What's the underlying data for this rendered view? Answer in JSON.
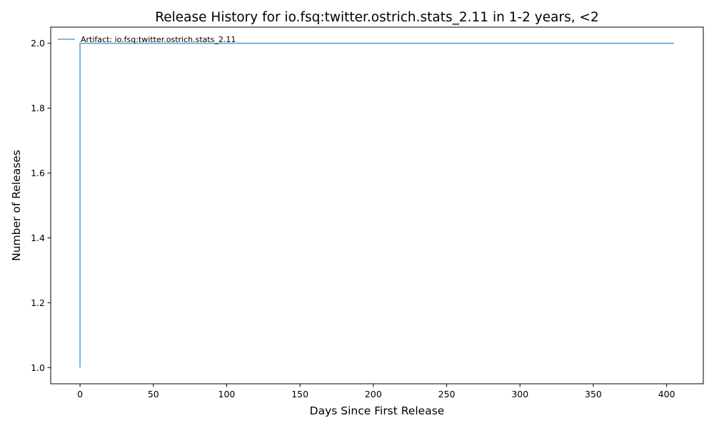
{
  "chart_data": {
    "type": "line",
    "title": "Release History for io.fsq:twitter.ostrich.stats_2.11 in 1-2 years, <2",
    "xlabel": "Days Since First Release",
    "ylabel": "Number of Releases",
    "xlim": [
      -20,
      425
    ],
    "ylim": [
      0.95,
      2.05
    ],
    "xticks": [
      0,
      50,
      100,
      150,
      200,
      250,
      300,
      350,
      400
    ],
    "yticks": [
      1.0,
      1.2,
      1.4,
      1.6,
      1.8,
      2.0
    ],
    "grid": false,
    "legend_position": "top-left",
    "series": [
      {
        "name": "Artifact: io.fsq:twitter.ostrich.stats_2.11",
        "color": "#5ba3d0",
        "x": [
          0,
          0,
          405
        ],
        "y": [
          1,
          2,
          2
        ]
      }
    ]
  }
}
